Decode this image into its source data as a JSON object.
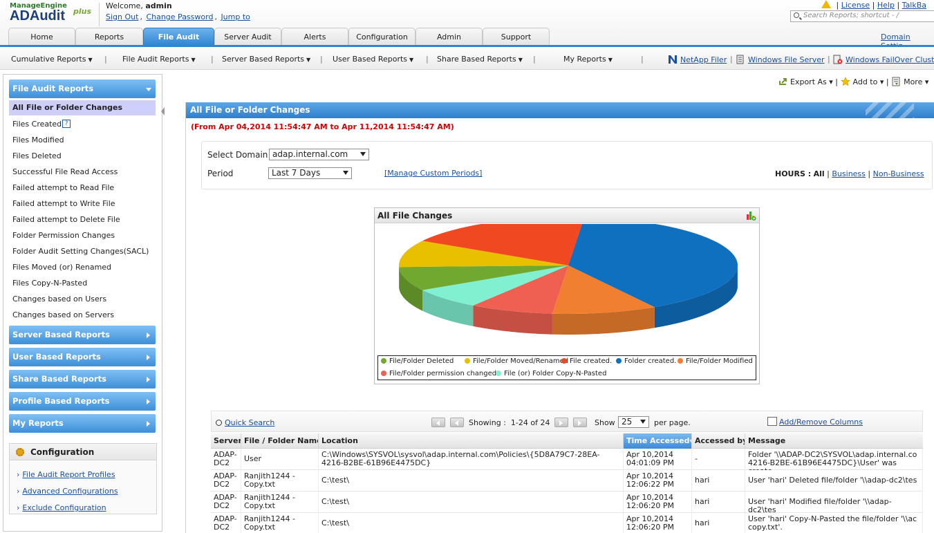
{
  "header": {
    "logo_top": "ManageEngine",
    "logo_main": "ADAudit",
    "logo_plus": "plus",
    "welcome_prefix": "Welcome,",
    "username": "admin",
    "links": [
      "Sign Out",
      "Change Password",
      "Jump to"
    ],
    "top_links": [
      "License",
      "Help",
      "TalkBa"
    ],
    "search_placeholder": "Search Reports; shortcut - /",
    "domain_settings": "Domain Settin"
  },
  "tabs": [
    {
      "label": "Home",
      "active": false
    },
    {
      "label": "Reports",
      "active": false
    },
    {
      "label": "File Audit",
      "active": true
    },
    {
      "label": "Server Audit",
      "active": false
    },
    {
      "label": "Alerts",
      "active": false
    },
    {
      "label": "Configuration",
      "active": false
    },
    {
      "label": "Admin",
      "active": false
    },
    {
      "label": "Support",
      "active": false
    }
  ],
  "subnav": {
    "menus": [
      "Cumulative Reports",
      "File Audit Reports",
      "Server Based Reports",
      "User Based Reports",
      "Share Based Reports",
      "My Reports"
    ],
    "links": [
      {
        "label": "NetApp Filer",
        "icon": "netapp-icon"
      },
      {
        "label": "Windows File Server",
        "icon": "file-server-icon"
      },
      {
        "label": "Windows FailOver Clust",
        "icon": "failover-cluster-icon"
      }
    ]
  },
  "sidebar": {
    "file_audit_header": "File Audit Reports",
    "items": [
      "All File or Folder Changes",
      "Files Created",
      "Files Modified",
      "Files Deleted",
      "Successful File Read Access",
      "Failed attempt to Read File",
      "Failed attempt to Write File",
      "Failed attempt to Delete File",
      "Folder Permission Changes",
      "Folder Audit Setting Changes(SACL)",
      "Files Moved (or) Renamed",
      "Files Copy-N-Pasted",
      "Changes based on Users",
      "Changes based on Servers"
    ],
    "help_mark": "?",
    "sections": [
      "Server Based Reports",
      "User Based Reports",
      "Share Based Reports",
      "Profile Based Reports",
      "My Reports"
    ],
    "config_title": "Configuration",
    "config_links": [
      "File Audit Report Profiles",
      "Advanced Configurations",
      "Exclude Configuration"
    ]
  },
  "toolbar": {
    "export": "Export As",
    "add_to": "Add to",
    "more": "More"
  },
  "main": {
    "title": "All File or Folder Changes",
    "date_range": "(From Apr 04,2014 11:54:47 AM to Apr 11,2014 11:54:47 AM)",
    "select_domain_label": "Select Domain",
    "domain_value": "adap.internal.com",
    "period_label": "Period",
    "period_value": "Last 7 Days",
    "manage_periods": "[Manage Custom Periods]",
    "hours_label": "HOURS :",
    "hours_all": "All",
    "hours_business": "Business",
    "hours_nonbusiness": "Non-Business"
  },
  "chart_data": {
    "type": "pie",
    "title": "All File Changes",
    "slices": [
      {
        "label": "Folder created.",
        "value": 40,
        "color": "#1070c0"
      },
      {
        "label": "File/Folder Modified",
        "value": 10,
        "color": "#f08030"
      },
      {
        "label": "File/Folder permission changed",
        "value": 8,
        "color": "#f06050"
      },
      {
        "label": "File (or) Folder Copy-N-Pasted",
        "value": 7,
        "color": "#80f0d0"
      },
      {
        "label": "File/Folder Deleted",
        "value": 8,
        "color": "#70a830"
      },
      {
        "label": "File/Folder Moved/Renamed",
        "value": 9,
        "color": "#e8c000"
      },
      {
        "label": "File created.",
        "value": 18,
        "color": "#f04820"
      }
    ],
    "legend_order": [
      "File/Folder Deleted",
      "File/Folder Moved/Renamed",
      "File created.",
      "Folder created.",
      "File/Folder Modified",
      "File/Folder permission changed",
      "File (or) Folder Copy-N-Pasted"
    ],
    "legend_placement": "bottom"
  },
  "grid": {
    "quick_search": "Quick Search",
    "showing_label": "Showing :",
    "range": "1-24 of 24",
    "show_label": "Show",
    "page_size": "25",
    "per_page": "per page.",
    "add_remove": "Add/Remove Columns",
    "columns": [
      "Server",
      "File / Folder Name",
      "Location",
      "Time Accessed",
      "Accessed by",
      "Message"
    ],
    "rows": [
      {
        "server": "ADAP-\nDC2",
        "name": "User",
        "location": "C:\\Windows\\SYSVOL\\sysvol\\adap.internal.com\\Policies\\{5D8A79C7-28EA-\n4216-B2BE-61B96E4475DC}",
        "time": "Apr 10,2014\n04:01:09 PM",
        "by": "-",
        "message": "Folder '\\\\ADAP-DC2\\SYSVOL\\adap.internal.co\n4216-B2BE-61B96E4475DC}\\User' was create"
      },
      {
        "server": "ADAP-\nDC2",
        "name": "Ranjith1244 -\nCopy.txt",
        "location": "C:\\test\\",
        "time": "Apr 10,2014\n12:06:22 PM",
        "by": "hari",
        "message": "User 'hari' Deleted file/folder '\\\\adap-dc2\\tes"
      },
      {
        "server": "ADAP-\nDC2",
        "name": "Ranjith1244 -\nCopy.txt",
        "location": "C:\\test\\",
        "time": "Apr 10,2014\n12:06:20 PM",
        "by": "hari",
        "message": "User 'hari' Modified file/folder '\\\\adap-dc2\\tes"
      },
      {
        "server": "ADAP-\nDC2",
        "name": "Ranjith1244 -\nCopy.txt",
        "location": "C:\\test\\",
        "time": "Apr 10,2014\n12:06:20 PM",
        "by": "hari",
        "message": "User 'hari' Copy-N-Pasted the file/folder '\\\\ac\ncopy.txt'."
      }
    ]
  }
}
